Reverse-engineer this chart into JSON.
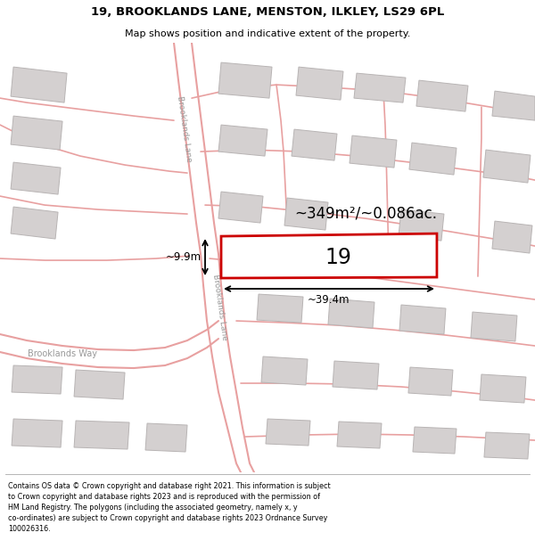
{
  "title": "19, BROOKLANDS LANE, MENSTON, ILKLEY, LS29 6PL",
  "subtitle": "Map shows position and indicative extent of the property.",
  "footer": "Contains OS data © Crown copyright and database right 2021. This information is subject\nto Crown copyright and database rights 2023 and is reproduced with the permission of\nHM Land Registry. The polygons (including the associated geometry, namely x, y\nco-ordinates) are subject to Crown copyright and database rights 2023 Ordnance Survey\n100026316.",
  "road_color": "#e8a0a0",
  "building_facecolor": "#d4d0d0",
  "building_edgecolor": "#b8b4b4",
  "plot_facecolor": "#ffffff",
  "plot_edgecolor": "#cc0000",
  "plot_edgewidth": 2.0,
  "plot_label": "19",
  "area_label": "~349m²/~0.086ac.",
  "width_label": "~39.4m",
  "height_label": "~9.9m",
  "street_upper": "Brooklands Lane",
  "street_lower": "Brooklands Lane",
  "street_way": "Brooklands Way",
  "map_bg": "#f7f3f3"
}
